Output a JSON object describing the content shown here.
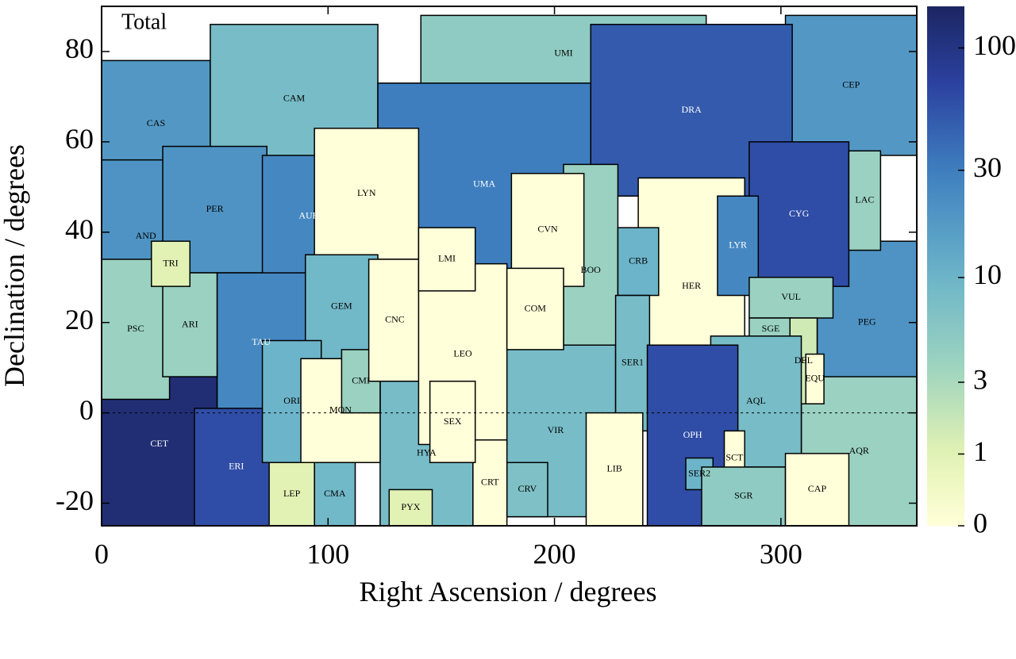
{
  "chart_data": {
    "type": "choropleth",
    "title": "Total",
    "x_label": "Right Ascension / degrees",
    "y_label": "Declination / degrees",
    "xlim": [
      0,
      360
    ],
    "ylim": [
      -25,
      90
    ],
    "xticks": [
      0,
      100,
      200,
      300
    ],
    "yticks": [
      -20,
      0,
      20,
      40,
      60,
      80
    ],
    "reference_line": 0,
    "colorbar": {
      "lim": [
        0,
        150
      ],
      "scale": "log1p",
      "ticks": [
        0,
        1,
        3,
        10,
        30,
        100
      ],
      "colormap": [
        [
          0,
          "#ffffd9"
        ],
        [
          0.14,
          "#e2f2b3"
        ],
        [
          0.3,
          "#a0d5bf"
        ],
        [
          0.48,
          "#6bb4c9"
        ],
        [
          0.68,
          "#3e80c0"
        ],
        [
          0.85,
          "#2c42a0"
        ],
        [
          1,
          "#1c2562"
        ]
      ]
    },
    "regions": [
      {
        "name": "CAS",
        "ra": [
          0,
          48
        ],
        "dec": [
          50,
          78
        ],
        "value": 18
      },
      {
        "name": "CEP",
        "ra": [
          302,
          360
        ],
        "dec": [
          57,
          88
        ],
        "value": 18
      },
      {
        "name": "CAM",
        "ra": [
          48,
          122
        ],
        "dec": [
          53,
          86
        ],
        "value": 8
      },
      {
        "name": "UMI",
        "ra": [
          141,
          267
        ],
        "dec": [
          71,
          88
        ],
        "value": 5
      },
      {
        "name": "DRA",
        "ra": [
          216,
          305
        ],
        "dec": [
          48,
          86
        ],
        "value": 50
      },
      {
        "name": "UMA",
        "ra": [
          122,
          216
        ],
        "dec": [
          28,
          73
        ],
        "value": 30
      },
      {
        "name": "AND",
        "ra": [
          0,
          39
        ],
        "dec": [
          22,
          56
        ],
        "value": 20
      },
      {
        "name": "PER",
        "ra": [
          27,
          73
        ],
        "dec": [
          31,
          59
        ],
        "value": 20
      },
      {
        "name": "AUR",
        "ra": [
          71,
          112
        ],
        "dec": [
          30,
          57
        ],
        "value": 25
      },
      {
        "name": "LYN",
        "ra": [
          94,
          140
        ],
        "dec": [
          34,
          63
        ],
        "value": 0
      },
      {
        "name": "PEG",
        "ra": [
          316,
          360
        ],
        "dec": [
          2,
          38
        ],
        "value": 20
      },
      {
        "name": "CYG",
        "ra": [
          286,
          330
        ],
        "dec": [
          28,
          60
        ],
        "value": 60
      },
      {
        "name": "LAC",
        "ra": [
          330,
          344
        ],
        "dec": [
          36,
          58
        ],
        "value": 4
      },
      {
        "name": "HER",
        "ra": [
          237,
          284
        ],
        "dec": [
          4,
          52
        ],
        "value": 0
      },
      {
        "name": "BOO",
        "ra": [
          204,
          228
        ],
        "dec": [
          8,
          55
        ],
        "value": 4
      },
      {
        "name": "VIR",
        "ra": [
          174,
          227
        ],
        "dec": [
          -23,
          15
        ],
        "value": 8
      },
      {
        "name": "AQR",
        "ra": [
          309,
          360
        ],
        "dec": [
          -25,
          8
        ],
        "value": 4
      },
      {
        "name": "TAU",
        "ra": [
          51,
          90
        ],
        "dec": [
          0,
          31
        ],
        "value": 25
      },
      {
        "name": "CET",
        "ra": [
          0,
          51
        ],
        "dec": [
          -25,
          11
        ],
        "value": 120
      },
      {
        "name": "ERI",
        "ra": [
          41,
          78
        ],
        "dec": [
          -25,
          1
        ],
        "value": 60
      },
      {
        "name": "HYA",
        "ra": [
          123,
          164
        ],
        "dec": [
          -25,
          7
        ],
        "value": 8
      },
      {
        "name": "PSC",
        "ra": [
          0,
          30
        ],
        "dec": [
          3,
          34
        ],
        "value": 4
      },
      {
        "name": "ARI",
        "ra": [
          27,
          51
        ],
        "dec": [
          8,
          31
        ],
        "value": 4
      },
      {
        "name": "TRI",
        "ra": [
          22,
          39
        ],
        "dec": [
          28,
          38
        ],
        "value": 1
      },
      {
        "name": "GEM",
        "ra": [
          90,
          122
        ],
        "dec": [
          12,
          35
        ],
        "value": 9
      },
      {
        "name": "ORI",
        "ra": [
          71,
          97
        ],
        "dec": [
          -11,
          16
        ],
        "value": 10
      },
      {
        "name": "MON",
        "ra": [
          88,
          123
        ],
        "dec": [
          -11,
          12
        ],
        "value": 0
      },
      {
        "name": "CMI",
        "ra": [
          106,
          123
        ],
        "dec": [
          0,
          14
        ],
        "value": 4
      },
      {
        "name": "CNC",
        "ra": [
          118,
          141
        ],
        "dec": [
          7,
          34
        ],
        "value": 0
      },
      {
        "name": "LEO",
        "ra": [
          140,
          179
        ],
        "dec": [
          -7,
          33
        ],
        "value": 0
      },
      {
        "name": "LMI",
        "ra": [
          140,
          165
        ],
        "dec": [
          27,
          41
        ],
        "value": 0
      },
      {
        "name": "CVN",
        "ra": [
          181,
          213
        ],
        "dec": [
          28,
          53
        ],
        "value": 0
      },
      {
        "name": "COM",
        "ra": [
          179,
          204
        ],
        "dec": [
          14,
          32
        ],
        "value": 0
      },
      {
        "name": "CRB",
        "ra": [
          228,
          246
        ],
        "dec": [
          26,
          41
        ],
        "value": 10
      },
      {
        "name": "SER1",
        "ra": [
          227,
          242
        ],
        "dec": [
          -4,
          26
        ],
        "value": 8
      },
      {
        "name": "LYR",
        "ra": [
          272,
          290
        ],
        "dec": [
          26,
          48
        ],
        "value": 25
      },
      {
        "name": "VUL",
        "ra": [
          286,
          323
        ],
        "dec": [
          21,
          30
        ],
        "value": 4
      },
      {
        "name": "SGE",
        "ra": [
          286,
          305
        ],
        "dec": [
          16,
          21
        ],
        "value": 4
      },
      {
        "name": "DEL",
        "ra": [
          304,
          316
        ],
        "dec": [
          2,
          21
        ],
        "value": 1.5
      },
      {
        "name": "EQU",
        "ra": [
          311,
          319
        ],
        "dec": [
          2,
          13
        ],
        "value": 0
      },
      {
        "name": "AQL",
        "ra": [
          269,
          309
        ],
        "dec": [
          -12,
          17
        ],
        "value": 8
      },
      {
        "name": "OPH",
        "ra": [
          241,
          281
        ],
        "dec": [
          -25,
          15
        ],
        "value": 60
      },
      {
        "name": "SER2",
        "ra": [
          258,
          270
        ],
        "dec": [
          -17,
          -10
        ],
        "value": 10
      },
      {
        "name": "SCT",
        "ra": [
          275,
          284
        ],
        "dec": [
          -16,
          -4
        ],
        "value": 0
      },
      {
        "name": "SGR",
        "ra": [
          265,
          302
        ],
        "dec": [
          -25,
          -12
        ],
        "value": 5
      },
      {
        "name": "CAP",
        "ra": [
          302,
          330
        ],
        "dec": [
          -25,
          -9
        ],
        "value": 0
      },
      {
        "name": "LIB",
        "ra": [
          214,
          239
        ],
        "dec": [
          -25,
          0
        ],
        "value": 0
      },
      {
        "name": "CRV",
        "ra": [
          179,
          197
        ],
        "dec": [
          -23,
          -11
        ],
        "value": 7
      },
      {
        "name": "CRT",
        "ra": [
          164,
          179
        ],
        "dec": [
          -25,
          -6
        ],
        "value": 0
      },
      {
        "name": "SEX",
        "ra": [
          145,
          165
        ],
        "dec": [
          -11,
          7
        ],
        "value": 0
      },
      {
        "name": "CMA",
        "ra": [
          94,
          112
        ],
        "dec": [
          -25,
          -11
        ],
        "value": 9
      },
      {
        "name": "LEP",
        "ra": [
          74,
          94
        ],
        "dec": [
          -25,
          -11
        ],
        "value": 1
      },
      {
        "name": "PYX",
        "ra": [
          127,
          146
        ],
        "dec": [
          -25,
          -17
        ],
        "value": 1
      }
    ]
  }
}
